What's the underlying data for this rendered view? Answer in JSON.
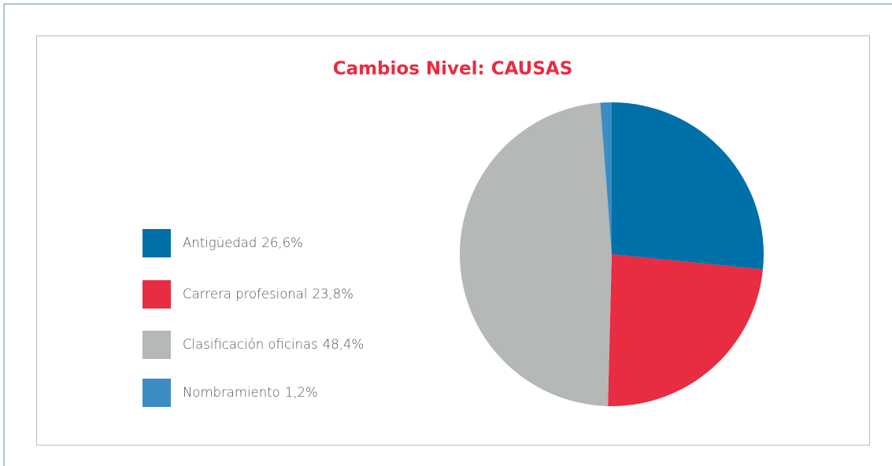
{
  "chart_data": {
    "type": "pie",
    "title": "Cambios Nivel: CAUSAS",
    "categories": [
      "Antigüedad",
      "Carrera profesional",
      "Clasificación oficinas",
      "Nombramiento"
    ],
    "values": [
      26.6,
      23.8,
      48.4,
      1.2
    ],
    "value_labels": [
      "26,6%",
      "23,8%",
      "48,4%",
      "1,2%"
    ],
    "colors": [
      "#0070a8",
      "#e82c42",
      "#b4b8b7",
      "#3d8cc4"
    ],
    "legend": "left"
  }
}
